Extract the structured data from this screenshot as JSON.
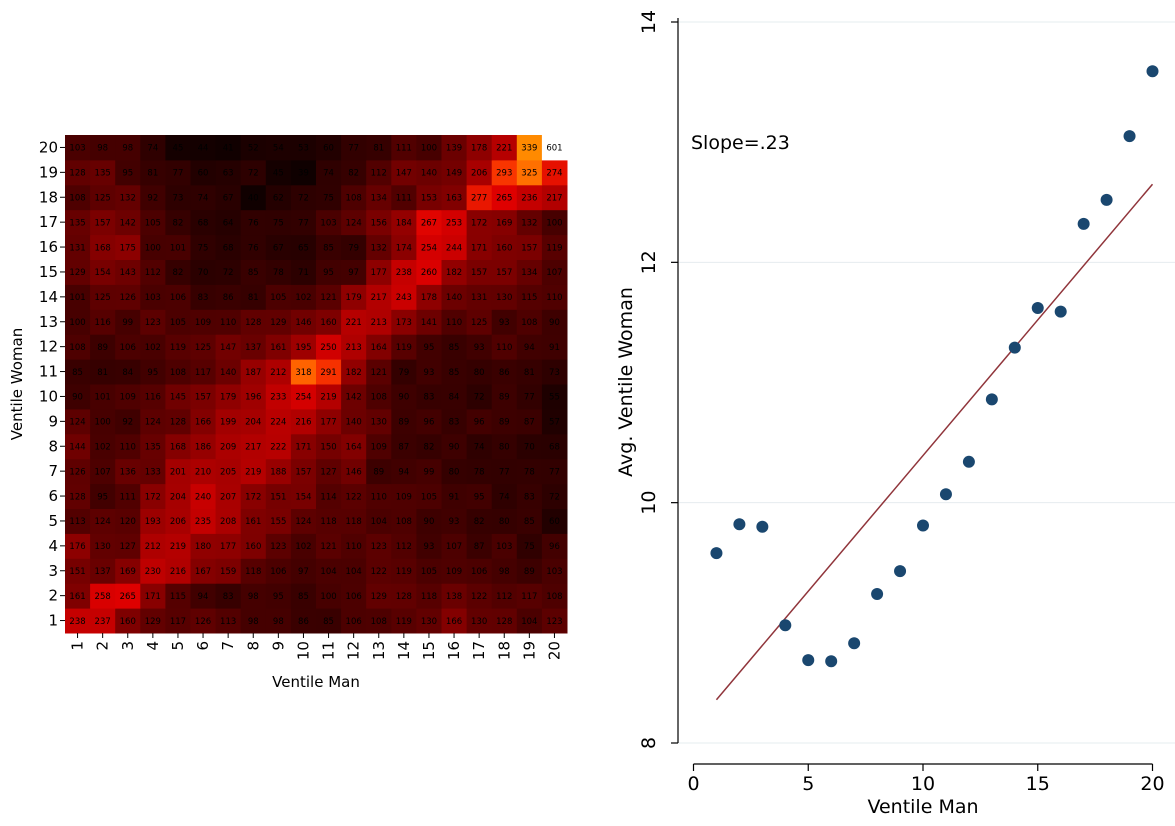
{
  "chart_data": [
    {
      "type": "heatmap",
      "xlabel": "Ventile Man",
      "ylabel": "Ventile Woman",
      "x_categories": [
        "1",
        "2",
        "3",
        "4",
        "5",
        "6",
        "7",
        "8",
        "9",
        "10",
        "11",
        "12",
        "13",
        "14",
        "15",
        "16",
        "17",
        "18",
        "19",
        "20"
      ],
      "y_categories": [
        "1",
        "2",
        "3",
        "4",
        "5",
        "6",
        "7",
        "8",
        "9",
        "10",
        "11",
        "12",
        "13",
        "14",
        "15",
        "16",
        "17",
        "18",
        "19",
        "20"
      ],
      "rows_note": "rows listed from y=1 (bottom) to y=20 (top); columns x=1..20",
      "values": [
        [
          238,
          237,
          160,
          129,
          117,
          126,
          113,
          98,
          98,
          86,
          85,
          106,
          108,
          119,
          130,
          166,
          130,
          128,
          104,
          123
        ],
        [
          161,
          258,
          265,
          171,
          115,
          94,
          83,
          98,
          95,
          85,
          100,
          106,
          129,
          128,
          118,
          138,
          122,
          112,
          117,
          108
        ],
        [
          151,
          137,
          169,
          230,
          216,
          167,
          159,
          118,
          106,
          97,
          104,
          104,
          122,
          119,
          105,
          109,
          106,
          98,
          89,
          103
        ],
        [
          176,
          130,
          127,
          212,
          219,
          180,
          177,
          160,
          123,
          102,
          121,
          110,
          123,
          112,
          93,
          107,
          87,
          103,
          75,
          96
        ],
        [
          113,
          124,
          120,
          193,
          206,
          235,
          208,
          161,
          155,
          124,
          118,
          118,
          104,
          108,
          90,
          93,
          82,
          80,
          85,
          60
        ],
        [
          128,
          95,
          111,
          172,
          204,
          240,
          207,
          172,
          151,
          154,
          114,
          122,
          110,
          109,
          105,
          91,
          95,
          74,
          83,
          72
        ],
        [
          126,
          107,
          136,
          133,
          201,
          210,
          205,
          219,
          188,
          157,
          127,
          146,
          89,
          94,
          99,
          80,
          78,
          77,
          78,
          77
        ],
        [
          144,
          102,
          110,
          135,
          168,
          186,
          209,
          217,
          222,
          171,
          150,
          164,
          109,
          87,
          82,
          90,
          74,
          80,
          70,
          68
        ],
        [
          124,
          100,
          92,
          124,
          128,
          166,
          199,
          204,
          224,
          216,
          177,
          140,
          130,
          89,
          96,
          83,
          96,
          89,
          87,
          57
        ],
        [
          90,
          101,
          109,
          116,
          145,
          157,
          179,
          196,
          233,
          254,
          219,
          142,
          108,
          90,
          83,
          84,
          72,
          89,
          77,
          55
        ],
        [
          85,
          81,
          84,
          95,
          108,
          117,
          140,
          187,
          212,
          318,
          291,
          182,
          121,
          79,
          93,
          85,
          80,
          86,
          81,
          73
        ],
        [
          108,
          89,
          106,
          102,
          119,
          125,
          147,
          137,
          161,
          195,
          250,
          213,
          164,
          119,
          95,
          85,
          93,
          110,
          94,
          91
        ],
        [
          100,
          116,
          99,
          123,
          105,
          109,
          110,
          128,
          129,
          146,
          160,
          221,
          213,
          173,
          141,
          110,
          125,
          93,
          108,
          90
        ],
        [
          101,
          125,
          126,
          103,
          106,
          83,
          86,
          81,
          105,
          102,
          121,
          179,
          217,
          243,
          178,
          140,
          131,
          130,
          115,
          110
        ],
        [
          129,
          154,
          143,
          112,
          82,
          70,
          72,
          85,
          78,
          71,
          95,
          97,
          177,
          238,
          260,
          182,
          157,
          157,
          134,
          107
        ],
        [
          131,
          168,
          175,
          100,
          101,
          75,
          68,
          76,
          67,
          65,
          85,
          79,
          132,
          174,
          254,
          244,
          171,
          160,
          157,
          119
        ],
        [
          135,
          157,
          142,
          105,
          82,
          68,
          64,
          76,
          75,
          77,
          103,
          124,
          156,
          184,
          267,
          253,
          172,
          169,
          132,
          100
        ],
        [
          108,
          125,
          132,
          92,
          73,
          74,
          67,
          40,
          62,
          72,
          75,
          108,
          134,
          111,
          153,
          163,
          277,
          265,
          236,
          217
        ],
        [
          128,
          135,
          95,
          81,
          77,
          60,
          63,
          72,
          45,
          39,
          74,
          82,
          112,
          147,
          140,
          149,
          206,
          293,
          325,
          274
        ],
        [
          103,
          98,
          98,
          74,
          45,
          44,
          41,
          52,
          54,
          53,
          60,
          77,
          81,
          111,
          100,
          139,
          178,
          221,
          339,
          601
        ]
      ]
    },
    {
      "type": "scatter",
      "xlabel": "Ventile Man",
      "ylabel": "Avg. Ventile Woman",
      "annotation": "Slope=.23",
      "xlim": [
        0,
        20
      ],
      "ylim": [
        8,
        14
      ],
      "xticks": [
        "0",
        "5",
        "10",
        "15",
        "20"
      ],
      "yticks": [
        "8",
        "10",
        "12",
        "14"
      ],
      "grid": "horizontal",
      "point_color": "#1a476f",
      "line_color": "#90353b",
      "points": {
        "x": [
          1,
          2,
          3,
          4,
          5,
          6,
          7,
          8,
          9,
          10,
          11,
          12,
          13,
          14,
          15,
          16,
          17,
          18,
          19,
          20
        ],
        "y": [
          9.58,
          9.82,
          9.8,
          8.98,
          8.69,
          8.68,
          8.83,
          9.24,
          9.43,
          9.81,
          10.07,
          10.34,
          10.86,
          11.29,
          11.62,
          11.59,
          12.32,
          12.52,
          13.05,
          13.59
        ]
      },
      "fit_line": {
        "x": [
          1,
          20
        ],
        "y": [
          8.36,
          12.65
        ]
      }
    }
  ]
}
